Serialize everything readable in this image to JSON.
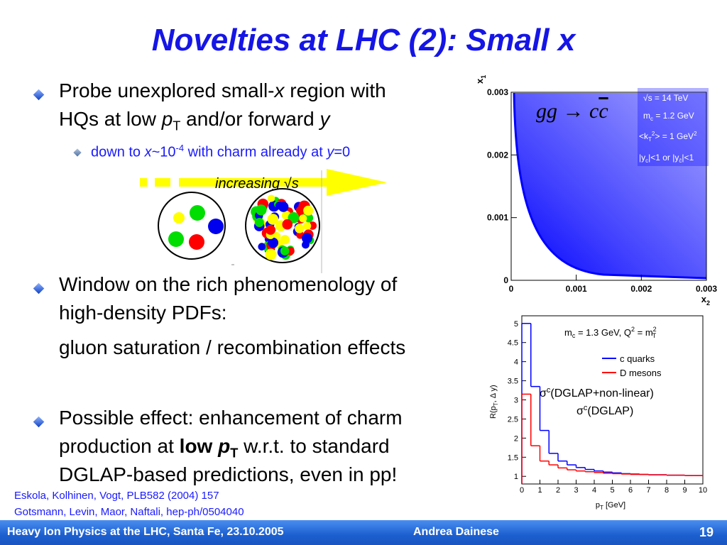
{
  "title": "Novelties at LHC (2): Small x",
  "bullets": [
    {
      "lines": [
        [
          "Probe unexplored small-",
          "x",
          " region with"
        ],
        [
          "HQs at low ",
          "p",
          "T",
          " and/or forward ",
          "y"
        ]
      ],
      "sub": [
        "down to ",
        "x",
        "~10",
        "-4",
        " with charm already at ",
        "y",
        "=0"
      ]
    },
    {
      "lines": [
        [
          "Window on the rich phenomenology of"
        ],
        [
          "high-density PDFs:"
        ]
      ],
      "continuation": "gluon saturation / recombination effects"
    },
    {
      "lines": [
        [
          "Possible effect: enhancement of charm"
        ],
        [
          "production at ",
          "low ",
          "p",
          "T",
          " w.r.t. to standard"
        ],
        [
          "DGLAP-based predictions, even in pp!"
        ]
      ]
    }
  ],
  "arrow_label": [
    "increasing ",
    "√s"
  ],
  "scatter": {
    "process": [
      "gg → c",
      "c"
    ],
    "legend": [
      [
        "√s = 14 TeV"
      ],
      [
        "m",
        "c",
        " = 1.2 GeV"
      ],
      [
        "<k",
        "T",
        "2",
        "> = 1 GeV",
        "2"
      ],
      [
        "|y",
        "c",
        "|<1 or |y",
        "c̄",
        "|<1"
      ]
    ],
    "xlabel": [
      "x",
      "2"
    ],
    "ylabel": [
      "x",
      "1"
    ],
    "xlim": [
      0,
      0.003
    ],
    "ylim": [
      0,
      0.003
    ],
    "xticks": [
      0,
      0.001,
      0.002,
      0.003
    ],
    "yticks": [
      0,
      0.001,
      0.002,
      0.003
    ]
  },
  "histogram": {
    "type": "step",
    "header": [
      "m",
      "c",
      " = 1.3 GeV, Q",
      "2",
      " = m",
      "2",
      "T"
    ],
    "bins": [
      0,
      0.5,
      1,
      1.5,
      2,
      2.5,
      3,
      3.5,
      4,
      4.5,
      5,
      5.5,
      6,
      6.5,
      7,
      7.5,
      8,
      8.5,
      9,
      9.5,
      10
    ],
    "series": [
      {
        "name": "c quarks",
        "color": "#0000ff",
        "values": [
          5.0,
          3.35,
          2.2,
          1.6,
          1.4,
          1.3,
          1.23,
          1.18,
          1.14,
          1.11,
          1.09,
          1.07,
          1.06,
          1.05,
          1.04,
          1.04,
          1.03,
          1.03,
          1.02,
          1.02
        ]
      },
      {
        "name": "D mesons",
        "color": "#ff0000",
        "values": [
          3.15,
          1.8,
          1.4,
          1.3,
          1.22,
          1.17,
          1.14,
          1.12,
          1.1,
          1.08,
          1.07,
          1.06,
          1.05,
          1.05,
          1.04,
          1.04,
          1.03,
          1.03,
          1.02,
          1.02
        ]
      }
    ],
    "xlim": [
      0,
      10
    ],
    "ylim": [
      0.8,
      5.2
    ],
    "xticks": [
      0,
      1,
      2,
      3,
      4,
      5,
      6,
      7,
      8,
      9,
      10
    ],
    "yticks": [
      1,
      1.5,
      2,
      2.5,
      3,
      3.5,
      4,
      4.5,
      5
    ],
    "xlabel": [
      "p",
      "T",
      " [GeV]"
    ],
    "ylabel": [
      "R(p",
      "T",
      ", Δ y)"
    ]
  },
  "annotations": [
    [
      "σ",
      "c",
      "(DGLAP+non-linear)"
    ],
    [
      "σ",
      "c",
      "(DGLAP)"
    ]
  ],
  "references": [
    "Eskola, Kolhinen, Vogt, PLB582 (2004) 157",
    "Gotsmann, Levin, Maor, Naftali, hep-ph/0504040"
  ],
  "footer": {
    "event": "Heavy Ion Physics at the LHC, Santa Fe, 23.10.2005",
    "author": "Andrea Dainese",
    "page": "19"
  }
}
